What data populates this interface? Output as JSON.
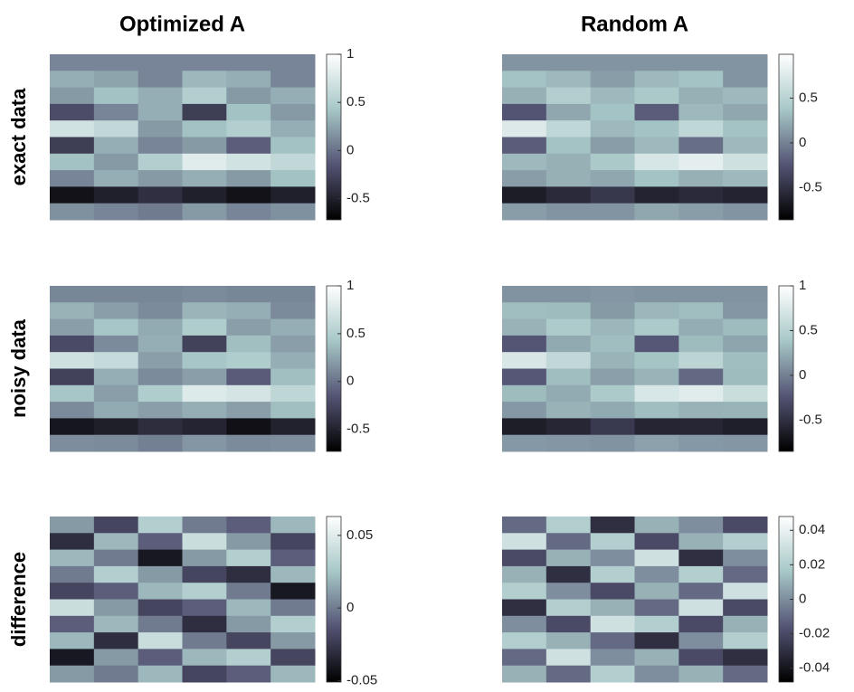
{
  "chart_data": [
    {
      "type": "heatmap",
      "title": "Optimized A",
      "ylabel": "exact data",
      "clim": [
        -0.72,
        1.0
      ],
      "cticks": [
        -0.5,
        0,
        0.5,
        1
      ],
      "colormap": [
        "#000000",
        "#545474",
        "#a7c7c7",
        "#ffffff"
      ],
      "values": [
        [
          0.1,
          0.1,
          0.1,
          0.1,
          0.1,
          0.1
        ],
        [
          0.3,
          0.25,
          0.1,
          0.35,
          0.3,
          0.1
        ],
        [
          0.2,
          0.4,
          0.3,
          0.5,
          0.2,
          0.3
        ],
        [
          -0.2,
          0.1,
          0.3,
          -0.3,
          0.4,
          0.2
        ],
        [
          0.7,
          0.6,
          0.2,
          0.4,
          0.5,
          0.3
        ],
        [
          -0.3,
          0.3,
          0.1,
          0.2,
          -0.1,
          0.4
        ],
        [
          0.4,
          0.2,
          0.5,
          0.8,
          0.7,
          0.6
        ],
        [
          0.1,
          0.3,
          0.2,
          0.3,
          0.2,
          0.4
        ],
        [
          -0.6,
          -0.5,
          -0.4,
          -0.5,
          -0.6,
          -0.5
        ],
        [
          0.15,
          0.1,
          0.05,
          0.2,
          0.1,
          0.15
        ]
      ]
    },
    {
      "type": "heatmap",
      "title": "Random A",
      "clim": [
        -0.86,
        0.99
      ],
      "cticks": [
        -0.5,
        0,
        0.5
      ],
      "colormap": [
        "#000000",
        "#545474",
        "#a7c7c7",
        "#ffffff"
      ],
      "values": [
        [
          0.1,
          0.1,
          0.1,
          0.1,
          0.1,
          0.1
        ],
        [
          0.35,
          0.3,
          0.15,
          0.3,
          0.35,
          0.1
        ],
        [
          0.25,
          0.45,
          0.3,
          0.4,
          0.25,
          0.3
        ],
        [
          -0.25,
          0.2,
          0.35,
          -0.2,
          0.3,
          0.2
        ],
        [
          0.75,
          0.55,
          0.3,
          0.35,
          0.55,
          0.35
        ],
        [
          -0.2,
          0.35,
          0.15,
          0.3,
          -0.1,
          0.3
        ],
        [
          0.3,
          0.25,
          0.4,
          0.7,
          0.8,
          0.65
        ],
        [
          0.15,
          0.25,
          0.2,
          0.35,
          0.25,
          0.3
        ],
        [
          -0.65,
          -0.55,
          -0.45,
          -0.6,
          -0.55,
          -0.6
        ],
        [
          0.15,
          0.1,
          0.1,
          0.2,
          0.15,
          0.1
        ]
      ]
    },
    {
      "type": "heatmap",
      "ylabel": "noisy data",
      "clim": [
        -0.73,
        1.0
      ],
      "cticks": [
        -0.5,
        0,
        0.5,
        1
      ],
      "colormap": [
        "#000000",
        "#545474",
        "#a7c7c7",
        "#ffffff"
      ],
      "values": [
        [
          0.1,
          0.1,
          0.1,
          0.12,
          0.1,
          0.1
        ],
        [
          0.32,
          0.22,
          0.12,
          0.33,
          0.3,
          0.12
        ],
        [
          0.22,
          0.42,
          0.28,
          0.48,
          0.22,
          0.3
        ],
        [
          -0.22,
          0.12,
          0.3,
          -0.28,
          0.38,
          0.22
        ],
        [
          0.68,
          0.62,
          0.22,
          0.42,
          0.48,
          0.3
        ],
        [
          -0.28,
          0.3,
          0.12,
          0.22,
          -0.12,
          0.38
        ],
        [
          0.42,
          0.22,
          0.48,
          0.78,
          0.72,
          0.58
        ],
        [
          0.12,
          0.28,
          0.22,
          0.3,
          0.22,
          0.38
        ],
        [
          -0.58,
          -0.52,
          -0.42,
          -0.48,
          -0.62,
          -0.5
        ],
        [
          0.13,
          0.12,
          0.06,
          0.18,
          0.12,
          0.14
        ]
      ]
    },
    {
      "type": "heatmap",
      "clim": [
        -0.85,
        1.0
      ],
      "cticks": [
        -0.5,
        0,
        0.5,
        1
      ],
      "colormap": [
        "#000000",
        "#545474",
        "#a7c7c7",
        "#ffffff"
      ],
      "values": [
        [
          0.1,
          0.1,
          0.12,
          0.1,
          0.1,
          0.1
        ],
        [
          0.33,
          0.32,
          0.14,
          0.3,
          0.33,
          0.12
        ],
        [
          0.27,
          0.43,
          0.3,
          0.42,
          0.24,
          0.32
        ],
        [
          -0.23,
          0.22,
          0.33,
          -0.22,
          0.32,
          0.2
        ],
        [
          0.73,
          0.57,
          0.28,
          0.37,
          0.53,
          0.33
        ],
        [
          -0.22,
          0.33,
          0.17,
          0.28,
          -0.12,
          0.32
        ],
        [
          0.32,
          0.23,
          0.42,
          0.72,
          0.78,
          0.63
        ],
        [
          0.13,
          0.27,
          0.22,
          0.33,
          0.27,
          0.28
        ],
        [
          -0.63,
          -0.57,
          -0.43,
          -0.58,
          -0.57,
          -0.62
        ],
        [
          0.13,
          0.12,
          0.1,
          0.18,
          0.13,
          0.12
        ]
      ]
    },
    {
      "type": "heatmap",
      "ylabel": "difference",
      "clim": [
        -0.051,
        0.063
      ],
      "cticks": [
        -0.05,
        0,
        0.05
      ],
      "colormap": [
        "#000000",
        "#545474",
        "#a7c7c7",
        "#ffffff"
      ],
      "values": [
        [
          0.01,
          -0.02,
          0.03,
          0.0,
          -0.01,
          0.02
        ],
        [
          -0.03,
          0.02,
          -0.01,
          0.04,
          0.01,
          -0.02
        ],
        [
          0.02,
          0.0,
          -0.04,
          0.01,
          0.03,
          -0.01
        ],
        [
          0.0,
          0.03,
          0.01,
          -0.02,
          -0.03,
          0.02
        ],
        [
          -0.02,
          -0.01,
          0.02,
          0.03,
          0.0,
          -0.04
        ],
        [
          0.04,
          0.01,
          -0.02,
          -0.01,
          0.02,
          0.0
        ],
        [
          -0.01,
          0.02,
          0.0,
          -0.03,
          0.01,
          0.03
        ],
        [
          0.02,
          -0.03,
          0.04,
          0.0,
          -0.02,
          0.01
        ],
        [
          -0.04,
          0.01,
          -0.01,
          0.02,
          0.03,
          -0.02
        ],
        [
          0.01,
          0.0,
          0.02,
          -0.02,
          -0.01,
          0.02
        ]
      ]
    },
    {
      "type": "heatmap",
      "clim": [
        -0.048,
        0.048
      ],
      "cticks": [
        -0.04,
        -0.02,
        0,
        0.02,
        0.04
      ],
      "colormap": [
        "#000000",
        "#545474",
        "#a7c7c7",
        "#ffffff"
      ],
      "values": [
        [
          -0.01,
          0.02,
          -0.03,
          0.01,
          0.0,
          -0.02
        ],
        [
          0.03,
          -0.01,
          0.02,
          -0.02,
          0.01,
          0.02
        ],
        [
          -0.02,
          0.01,
          0.0,
          0.03,
          -0.03,
          0.0
        ],
        [
          0.01,
          -0.03,
          0.02,
          0.0,
          0.02,
          -0.01
        ],
        [
          0.02,
          0.0,
          -0.02,
          0.01,
          -0.01,
          0.03
        ],
        [
          -0.03,
          0.02,
          0.01,
          -0.01,
          0.03,
          -0.02
        ],
        [
          0.0,
          -0.02,
          0.03,
          0.02,
          -0.02,
          0.01
        ],
        [
          0.02,
          0.01,
          -0.01,
          -0.03,
          0.0,
          0.02
        ],
        [
          -0.01,
          0.03,
          0.0,
          0.01,
          -0.02,
          -0.03
        ],
        [
          0.01,
          -0.01,
          0.02,
          0.0,
          0.01,
          -0.01
        ]
      ]
    }
  ]
}
